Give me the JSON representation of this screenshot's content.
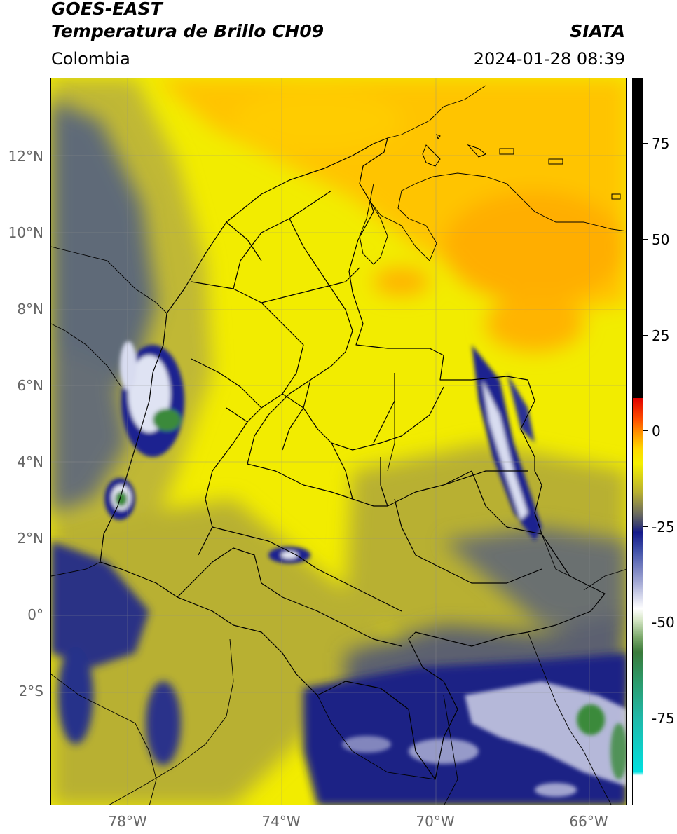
{
  "header": {
    "line1": "GOES-EAST",
    "line2": "Temperatura de Brillo CH09",
    "org": "SIATA",
    "region": "Colombia",
    "datetime": "2024-01-28 08:39"
  },
  "map": {
    "lat_labels": [
      "12°N",
      "10°N",
      "8°N",
      "6°N",
      "4°N",
      "2°N",
      "0°",
      "2°S"
    ],
    "lon_labels": [
      "78°W",
      "74°W",
      "70°W",
      "66°W"
    ],
    "colorbar_labels": [
      "75",
      "50",
      "25",
      "0",
      "-25",
      "-50",
      "-75"
    ],
    "colors": {
      "warm_yellow": "#f5f000",
      "orange": "#ffb800",
      "olive": "#b8b030",
      "slate": "#5a6475",
      "navy": "#1a2080",
      "white_cloud": "#e6e8f5",
      "green_core": "#3a8a3a"
    }
  }
}
